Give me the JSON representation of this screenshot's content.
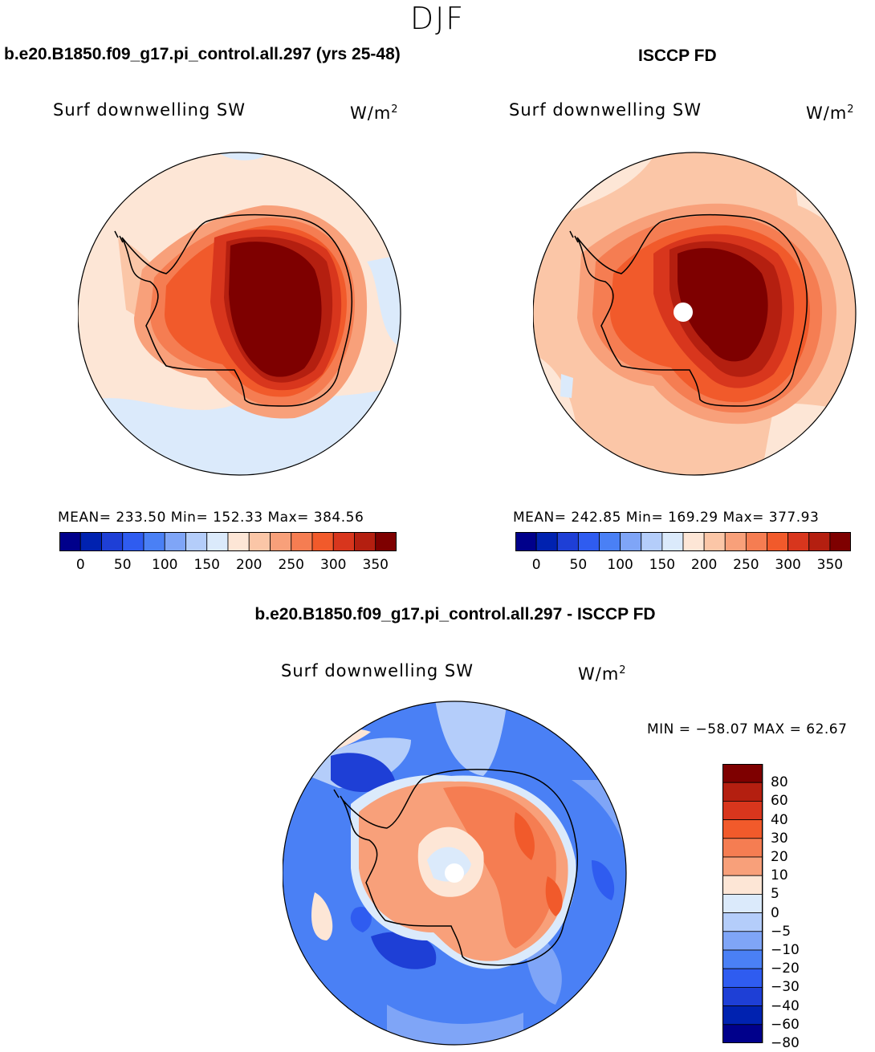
{
  "figure": {
    "season": "DJF",
    "bottom_title": "b.e20.B1850.f09_g17.pi_control.all.297 - ISCCP FD"
  },
  "panels": [
    {
      "title": "b.e20.B1850.f09_g17.pi_control.all.297 (yrs 25-48)",
      "variable": "Surf downwelling SW",
      "units": "W/m",
      "units_sup": "2",
      "stats": "MEAN= 233.50   Min= 152.33   Max= 384.56"
    },
    {
      "title": "ISCCP FD",
      "variable": "Surf downwelling SW",
      "units": "W/m",
      "units_sup": "2",
      "stats": "MEAN= 242.85   Min= 169.29   Max= 377.93"
    },
    {
      "title": "",
      "variable": "Surf downwelling SW",
      "units": "W/m",
      "units_sup": "2",
      "stats": "MIN = −58.07 MAX =  62.67"
    }
  ],
  "colorbar_abs": {
    "colors": [
      "#00008b",
      "#0022b0",
      "#1e3fd6",
      "#2f5cf0",
      "#4a80f5",
      "#7fa5f7",
      "#b4cdfa",
      "#dbeafb",
      "#fde6d6",
      "#fbc6a7",
      "#f8a07a",
      "#f57d52",
      "#f15a2b",
      "#d8361d",
      "#b41f10",
      "#7e0000"
    ],
    "labels": [
      "0",
      "50",
      "100",
      "150",
      "200",
      "250",
      "300",
      "350"
    ]
  },
  "colorbar_diff": {
    "colors": [
      "#7e0000",
      "#b41f10",
      "#d8361d",
      "#f15a2b",
      "#f57d52",
      "#f8a07a",
      "#fde6d6",
      "#dbeafb",
      "#b4cdfa",
      "#7fa5f7",
      "#4a80f5",
      "#2f5cf0",
      "#1e3fd6",
      "#0022b0",
      "#00008b"
    ],
    "labels": [
      "80",
      "60",
      "40",
      "30",
      "20",
      "10",
      "5",
      "0",
      "−5",
      "−10",
      "−20",
      "−30",
      "−40",
      "−60",
      "−80"
    ]
  }
}
